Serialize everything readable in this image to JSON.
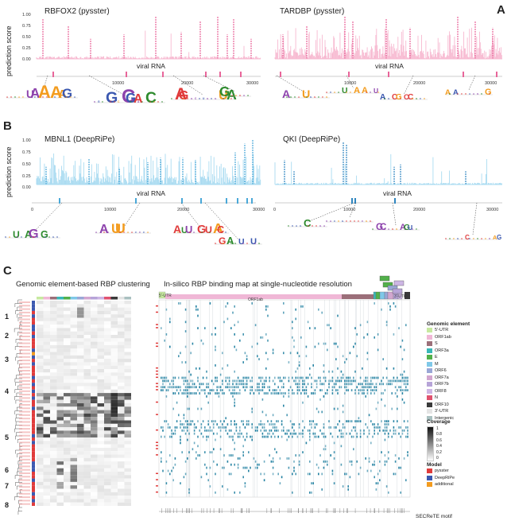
{
  "panels": {
    "A": {
      "letter": "A",
      "left": {
        "title": "RBFOX2 (pysster)",
        "color": "#e8659a",
        "fill": "#f7b8d0"
      },
      "right": {
        "title": "TARDBP (pysster)",
        "color": "#e8659a",
        "fill": "#f7b8d0"
      }
    },
    "B": {
      "letter": "B",
      "left": {
        "title": "MBNL1 (DeepRiPe)",
        "color": "#4aa8d8",
        "fill": "#a9dbf1"
      },
      "right": {
        "title": "QKI (DeepRiPe)",
        "color": "#2f86c0",
        "fill": "#a9dbf1"
      }
    },
    "C": {
      "letter": "C",
      "left_title": "Genomic element-based RBP clustering",
      "right_title": "In-silico RBP binding map at single-nucleotide resolution",
      "bottom_label": "SECReTE motif",
      "cluster_labels": [
        "1",
        "2",
        "3",
        "4",
        "5",
        "6",
        "7",
        "8"
      ]
    }
  },
  "axes": {
    "ylabel": "prediction score",
    "xlabel": "viral RNA",
    "yticks": [
      "1.00",
      "0.75",
      "0.50",
      "0.25",
      "0.00"
    ],
    "genome_ticks": [
      "0",
      "10000",
      "20000",
      "30000"
    ]
  },
  "legend": {
    "genomic_title": "Genomic element",
    "genomic_items": [
      {
        "label": "5'-UTR",
        "color": "#c7e9a0"
      },
      {
        "label": "ORF1ab",
        "color": "#f0b7d6"
      },
      {
        "label": "S",
        "color": "#9b6f79"
      },
      {
        "label": "ORF3a",
        "color": "#39b8b8"
      },
      {
        "label": "E",
        "color": "#52b04a"
      },
      {
        "label": "M",
        "color": "#7fc8e8"
      },
      {
        "label": "ORF6",
        "color": "#9aa7d6"
      },
      {
        "label": "ORF7a",
        "color": "#d2a6cf"
      },
      {
        "label": "ORF7b",
        "color": "#b7a4d8"
      },
      {
        "label": "ORF8",
        "color": "#cdb6e4"
      },
      {
        "label": "N",
        "color": "#e0526f"
      },
      {
        "label": "ORF10",
        "color": "#3a3a3a"
      },
      {
        "label": "3'-UTR",
        "color": "#e4e4e4"
      },
      {
        "label": "Intergenic",
        "color": "#a9c0c0"
      }
    ],
    "coverage_title": "Coverage",
    "coverage_ticks": [
      "1",
      "0.8",
      "0.6",
      "0.4",
      "0.2",
      "0"
    ],
    "model_title": "Model",
    "model_items": [
      {
        "label": "pysster",
        "color": "#e03b3b"
      },
      {
        "label": "DeepRiPe",
        "color": "#3b58b0"
      },
      {
        "label": "additional",
        "color": "#f39c1f"
      }
    ]
  },
  "genome_map": {
    "top_labels": [
      {
        "label": "5'-UTR"
      },
      {
        "label": "ORF1ab"
      },
      {
        "label": "3'-UTR"
      }
    ],
    "binding_color": "#1f7fa0"
  }
}
